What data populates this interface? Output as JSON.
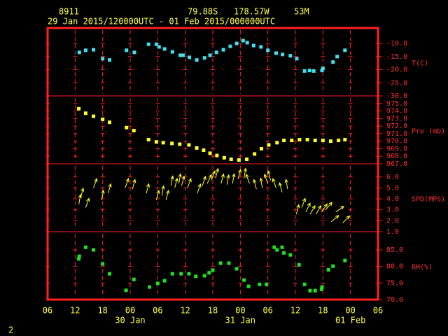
{
  "header": {
    "station": "8911",
    "lat": "79.88S",
    "lon": "178.57W",
    "elev": "53M",
    "period": "29 Jan 2015/120000UTC - 01 Feb 2015/000000UTC"
  },
  "footer": "2",
  "chart_data": [
    {
      "type": "scatter",
      "ylabel": "T(C)",
      "color": "#40e0f0",
      "grid": true,
      "ylim": [
        -30,
        -4.1
      ],
      "yticks": [
        {
          "value": -30,
          "label": "-30.0"
        },
        {
          "value": -25,
          "label": "-25.0"
        },
        {
          "value": -20,
          "label": "-20.0"
        },
        {
          "value": -15,
          "label": "-15.0"
        },
        {
          "value": -10,
          "label": "-10.0"
        }
      ],
      "x": [
        12.9,
        14.3,
        16,
        18,
        19.5,
        23.2,
        24.9,
        28,
        29.7,
        30.3,
        31.5,
        33.2,
        34.9,
        35.5,
        36.9,
        38.5,
        40.2,
        41.4,
        42.8,
        44.3,
        45.8,
        47.2,
        48.6,
        49.5,
        50.9,
        52.5,
        54,
        55.8,
        57.2,
        58.9,
        60.3,
        62,
        63.1,
        64,
        65.8,
        66,
        68.2,
        69.1,
        70.8
      ],
      "values": [
        -13.4,
        -12.6,
        -12.4,
        -15.8,
        -16.3,
        -12.6,
        -13.4,
        -10.3,
        -10.3,
        -11.3,
        -12.1,
        -13.2,
        -14.5,
        -14.5,
        -15.3,
        -16.3,
        -15.5,
        -14.5,
        -13.4,
        -12.4,
        -11.1,
        -10,
        -8.9,
        -9.7,
        -10.8,
        -11.3,
        -12.6,
        -13.7,
        -14.2,
        -14.7,
        -15.8,
        -20.5,
        -20.3,
        -20.5,
        -20.3,
        -19.5,
        -17.1,
        -15,
        -12.6
      ]
    },
    {
      "type": "scatter",
      "ylabel": "Pre (mb)",
      "color": "#ffff20",
      "grid": true,
      "ylim": [
        967,
        976
      ],
      "yticks": [
        {
          "value": 967,
          "label": "967.0"
        },
        {
          "value": 968,
          "label": "968.0"
        },
        {
          "value": 969,
          "label": "969.0"
        },
        {
          "value": 970,
          "label": "970.0"
        },
        {
          "value": 971,
          "label": "971.0"
        },
        {
          "value": 972,
          "label": "972.0"
        },
        {
          "value": 973,
          "label": "973.0"
        },
        {
          "value": 974,
          "label": "974.0"
        },
        {
          "value": 975,
          "label": "975.0"
        }
      ],
      "x": [
        12.8,
        14.3,
        16,
        18,
        19.5,
        23.2,
        24.8,
        28,
        29.7,
        31.2,
        33.1,
        34.8,
        36.8,
        38.5,
        40,
        41.4,
        42.9,
        44.5,
        46,
        47.7,
        49.4,
        51.1,
        52.6,
        54.2,
        56,
        57.5,
        59.2,
        60.9,
        62.6,
        64.3,
        66,
        67.7,
        69.4,
        70.8
      ],
      "values": [
        974.3,
        973.7,
        973.3,
        972.9,
        972.5,
        971.8,
        971.4,
        970.2,
        969.9,
        969.8,
        969.7,
        969.6,
        969.5,
        969.1,
        968.8,
        968.4,
        968.1,
        967.8,
        967.6,
        967.5,
        967.6,
        968.3,
        969,
        969.5,
        969.8,
        970.1,
        970.1,
        970.2,
        970.2,
        970.1,
        970.1,
        970,
        970.1,
        970.2
      ]
    },
    {
      "type": "quiver",
      "ylabel": "SPD(MPS)",
      "color": "#ffff20",
      "grid": true,
      "ylim": [
        1,
        7.2
      ],
      "yticks": [
        {
          "value": 1,
          "label": "1.0"
        },
        {
          "value": 2,
          "label": "2.0"
        },
        {
          "value": 3,
          "label": "3.0"
        },
        {
          "value": 4,
          "label": "4.0"
        },
        {
          "value": 5,
          "label": "5.0"
        },
        {
          "value": 6,
          "label": "6.0"
        }
      ],
      "x": [
        12.8,
        13.2,
        14.3,
        16,
        17.8,
        19.2,
        22.9,
        24.5,
        27.5,
        29.7,
        30.9,
        31.8,
        32.9,
        33.7,
        34.6,
        35.2,
        36.5,
        38.6,
        39.7,
        40.8,
        41.7,
        42.6,
        43.8,
        45.1,
        46.3,
        47.5,
        48.8,
        50,
        51.5,
        52.8,
        54,
        54.6,
        55.8,
        57.1,
        58.3,
        60.2,
        61.4,
        62.3,
        63.2,
        64.5,
        65.7,
        66.6,
        67.8,
        68.8,
        70.3
      ],
      "values": [
        3.5,
        4.1,
        3.2,
        5.0,
        3.9,
        4.5,
        5.0,
        4.9,
        4.5,
        3.9,
        4.3,
        3.9,
        5.2,
        5.0,
        5.4,
        5.2,
        5.0,
        4.5,
        5.2,
        5.4,
        5.7,
        5.9,
        5.4,
        5.3,
        5.4,
        5.8,
        5.9,
        5.4,
        4.9,
        5.0,
        5.4,
        5.7,
        5.0,
        4.6,
        4.9,
        2.6,
        3.2,
        2.8,
        2.6,
        2.6,
        2.8,
        3.0,
        1.9,
        2.8,
        1.8
      ],
      "directions": [
        10,
        15,
        20,
        20,
        10,
        15,
        20,
        15,
        15,
        15,
        10,
        15,
        10,
        15,
        10,
        15,
        20,
        20,
        20,
        25,
        20,
        15,
        15,
        10,
        10,
        15,
        10,
        340,
        345,
        350,
        340,
        345,
        340,
        345,
        350,
        15,
        20,
        25,
        30,
        30,
        35,
        40,
        50,
        55,
        45
      ]
    },
    {
      "type": "scatter",
      "ylabel": "RH(%)",
      "color": "#20e020",
      "grid": true,
      "ylim": [
        70,
        90.5
      ],
      "yticks": [
        {
          "value": 70,
          "label": "70.0"
        },
        {
          "value": 75,
          "label": "75.0"
        },
        {
          "value": 80,
          "label": "80.0"
        },
        {
          "value": 85,
          "label": "85.0"
        }
      ],
      "xlim": [
        6,
        78
      ],
      "xticks": [
        {
          "value": 6,
          "label": "06"
        },
        {
          "value": 12,
          "label": "12"
        },
        {
          "value": 18,
          "label": "18"
        },
        {
          "value": 24,
          "label": "00"
        },
        {
          "value": 30,
          "label": "06"
        },
        {
          "value": 36,
          "label": "12"
        },
        {
          "value": 42,
          "label": "18"
        },
        {
          "value": 48,
          "label": "00"
        },
        {
          "value": 54,
          "label": "06"
        },
        {
          "value": 60,
          "label": "12"
        },
        {
          "value": 66,
          "label": "18"
        },
        {
          "value": 72,
          "label": "00"
        },
        {
          "value": 78,
          "label": "06"
        }
      ],
      "xdays": [
        {
          "value": 24,
          "label": "30 Jan"
        },
        {
          "value": 48,
          "label": "31 Jan"
        },
        {
          "value": 72,
          "label": "01 Feb"
        }
      ],
      "x": [
        12.8,
        12.9,
        14.3,
        16,
        18,
        19.5,
        23.1,
        24.8,
        28.2,
        30,
        31.5,
        33.2,
        35.1,
        36.8,
        38.3,
        40.2,
        41.2,
        42,
        43.7,
        45.5,
        47.2,
        48.8,
        49.8,
        52.2,
        53.7,
        55.4,
        56,
        57.1,
        57.5,
        58.9,
        60.8,
        62,
        63.2,
        64.3,
        65.7,
        65.8,
        67.2,
        68.2,
        70.8
      ],
      "values": [
        82.3,
        83.1,
        85.8,
        85,
        80.8,
        77.8,
        72.8,
        76.1,
        73.8,
        74.9,
        75.7,
        77.8,
        77.8,
        77.8,
        77,
        77.2,
        78.1,
        78.9,
        81,
        81,
        79.3,
        75.9,
        74,
        74.6,
        74.6,
        85.8,
        85,
        85.8,
        84.1,
        83.5,
        80.5,
        74.6,
        72.7,
        72.7,
        73.1,
        73.8,
        79,
        80.1,
        81.8
      ]
    }
  ]
}
